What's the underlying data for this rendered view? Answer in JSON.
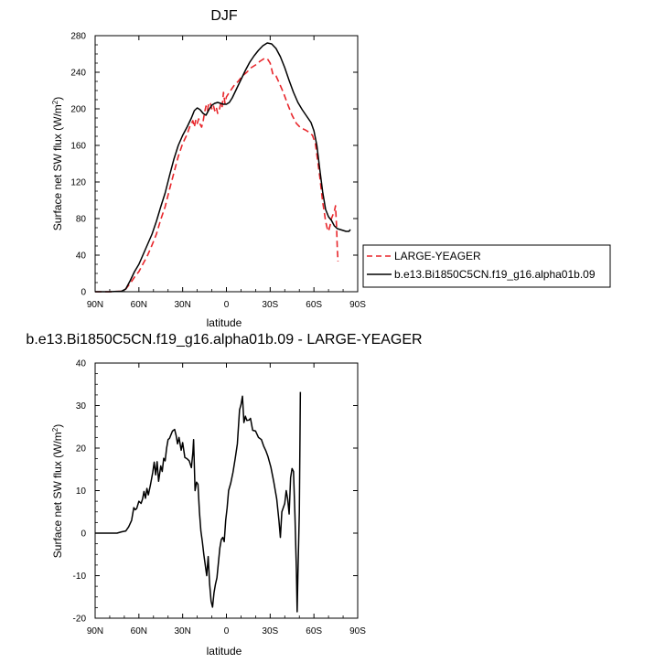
{
  "chart_data": [
    {
      "type": "line",
      "title": "DJF",
      "xlabel": "latitude",
      "ylabel": "Surface net SW flux (W/m",
      "ylabel_sup": "2",
      "ylabel_end": ")",
      "xlim": [
        90,
        -90
      ],
      "ylim": [
        0,
        280
      ],
      "xticks": [
        {
          "value": 90,
          "label": "90N"
        },
        {
          "value": 60,
          "label": "60N"
        },
        {
          "value": 30,
          "label": "30N"
        },
        {
          "value": 0,
          "label": "0"
        },
        {
          "value": -30,
          "label": "30S"
        },
        {
          "value": -60,
          "label": "60S"
        },
        {
          "value": -90,
          "label": "90S"
        }
      ],
      "yticks": [
        0,
        40,
        80,
        120,
        160,
        200,
        240,
        280
      ],
      "legend_position": "right, below plot",
      "series": [
        {
          "name": "LARGE-YEAGER",
          "color": "#e8262b",
          "dash": "dashed",
          "points": [
            [
              90,
              0
            ],
            [
              80,
              0
            ],
            [
              72,
              0.5
            ],
            [
              69,
              3
            ],
            [
              66,
              9
            ],
            [
              63,
              16
            ],
            [
              60,
              22
            ],
            [
              57,
              31
            ],
            [
              54,
              40
            ],
            [
              51,
              51
            ],
            [
              48,
              63
            ],
            [
              45,
              79
            ],
            [
              42,
              93
            ],
            [
              39,
              112
            ],
            [
              36,
              130
            ],
            [
              33,
              148
            ],
            [
              30,
              162
            ],
            [
              27,
              172
            ],
            [
              25,
              181
            ],
            [
              23,
              187
            ],
            [
              22,
              180
            ],
            [
              21,
              188
            ],
            [
              20,
              184
            ],
            [
              19,
              189
            ],
            [
              18,
              183
            ],
            [
              17,
              180
            ],
            [
              16,
              186
            ],
            [
              15,
              196
            ],
            [
              14,
              203
            ],
            [
              13,
              198
            ],
            [
              12,
              207
            ],
            [
              11,
              206
            ],
            [
              10,
              200
            ],
            [
              9,
              204
            ],
            [
              8,
              198
            ],
            [
              7,
              202
            ],
            [
              6,
              195
            ],
            [
              5,
              198
            ],
            [
              4,
              205
            ],
            [
              3,
              201
            ],
            [
              2,
              218
            ],
            [
              1,
              206
            ],
            [
              0,
              213
            ],
            [
              -2,
              218
            ],
            [
              -5,
              225
            ],
            [
              -8,
              230
            ],
            [
              -11,
              236
            ],
            [
              -14,
              240
            ],
            [
              -17,
              245
            ],
            [
              -20,
              248
            ],
            [
              -23,
              252
            ],
            [
              -26,
              255
            ],
            [
              -28,
              255
            ],
            [
              -30,
              250
            ],
            [
              -32,
              237
            ],
            [
              -34,
              236
            ],
            [
              -36,
              229
            ],
            [
              -39,
              218
            ],
            [
              -42,
              205
            ],
            [
              -45,
              193
            ],
            [
              -48,
              184
            ],
            [
              -51,
              179
            ],
            [
              -54,
              177
            ],
            [
              -57,
              174
            ],
            [
              -59,
              171
            ],
            [
              -61,
              162
            ],
            [
              -63,
              138
            ],
            [
              -64,
              126
            ],
            [
              -65,
              112
            ],
            [
              -66,
              98
            ],
            [
              -67,
              88
            ],
            [
              -68,
              77
            ],
            [
              -69,
              70
            ],
            [
              -70,
              66
            ],
            [
              -71,
              72
            ],
            [
              -72,
              80
            ],
            [
              -73,
              84
            ],
            [
              -74,
              88
            ],
            [
              -74.8,
              94
            ],
            [
              -75.5,
              72
            ],
            [
              -76,
              48
            ],
            [
              -76.5,
              33
            ]
          ]
        },
        {
          "name": "b.e13.Bi1850C5CN.f19_g16.alpha01b.09",
          "color": "#000000",
          "dash": "solid",
          "points": [
            [
              90,
              0
            ],
            [
              80,
              0
            ],
            [
              72,
              0.5
            ],
            [
              69,
              3
            ],
            [
              66,
              12
            ],
            [
              63,
              22
            ],
            [
              60,
              30
            ],
            [
              57,
              41
            ],
            [
              54,
              52
            ],
            [
              51,
              63
            ],
            [
              48,
              77
            ],
            [
              45,
              93
            ],
            [
              42,
              108
            ],
            [
              39,
              127
            ],
            [
              36,
              145
            ],
            [
              33,
              160
            ],
            [
              30,
              171
            ],
            [
              27,
              180
            ],
            [
              24,
              190
            ],
            [
              22,
              198
            ],
            [
              20,
              201
            ],
            [
              18,
              199
            ],
            [
              16,
              195
            ],
            [
              14,
              193
            ],
            [
              12,
              199
            ],
            [
              10,
              204
            ],
            [
              8,
              206
            ],
            [
              6,
              207
            ],
            [
              4,
              206
            ],
            [
              2,
              205
            ],
            [
              0,
              205
            ],
            [
              -2,
              207
            ],
            [
              -4,
              212
            ],
            [
              -7,
              222
            ],
            [
              -10,
              232
            ],
            [
              -13,
              242
            ],
            [
              -16,
              251
            ],
            [
              -19,
              258
            ],
            [
              -22,
              264
            ],
            [
              -25,
              269
            ],
            [
              -28,
              272
            ],
            [
              -31,
              271
            ],
            [
              -34,
              266
            ],
            [
              -37,
              257
            ],
            [
              -40,
              245
            ],
            [
              -43,
              231
            ],
            [
              -46,
              218
            ],
            [
              -49,
              207
            ],
            [
              -52,
              199
            ],
            [
              -55,
              192
            ],
            [
              -58,
              185
            ],
            [
              -60,
              176
            ],
            [
              -62,
              160
            ],
            [
              -64,
              134
            ],
            [
              -66,
              109
            ],
            [
              -68,
              90
            ],
            [
              -70,
              82
            ],
            [
              -72,
              78
            ],
            [
              -74,
              72
            ],
            [
              -76,
              69
            ],
            [
              -78,
              68
            ],
            [
              -80,
              67
            ],
            [
              -82,
              66
            ],
            [
              -84,
              66
            ],
            [
              -85,
              68
            ]
          ]
        }
      ]
    },
    {
      "type": "line",
      "title": "b.e13.Bi1850C5CN.f19_g16.alpha01b.09 - LARGE-YEAGER",
      "xlabel": "latitude",
      "ylabel": "Surface net SW flux (W/m",
      "ylabel_sup": "2",
      "ylabel_end": ")",
      "xlim": [
        90,
        -90
      ],
      "ylim": [
        -20,
        40
      ],
      "xticks": [
        {
          "value": 90,
          "label": "90N"
        },
        {
          "value": 60,
          "label": "60N"
        },
        {
          "value": 30,
          "label": "30N"
        },
        {
          "value": 0,
          "label": "0"
        },
        {
          "value": -30,
          "label": "30S"
        },
        {
          "value": -60,
          "label": "60S"
        },
        {
          "value": -90,
          "label": "90S"
        }
      ],
      "yticks": [
        -20,
        -10,
        0,
        10,
        20,
        30,
        40
      ],
      "series": [
        {
          "name": "",
          "color": "#000000",
          "dash": "solid",
          "points": [
            [
              90,
              0
            ],
            [
              80,
              0
            ],
            [
              75,
              0
            ],
            [
              72,
              0.3
            ],
            [
              69,
              0.5
            ],
            [
              67,
              1.5
            ],
            [
              65,
              3
            ],
            [
              63.5,
              6
            ],
            [
              62.5,
              5.5
            ],
            [
              61.5,
              5.8
            ],
            [
              60,
              7.5
            ],
            [
              58.5,
              7
            ],
            [
              57.5,
              8
            ],
            [
              56.5,
              9.8
            ],
            [
              55.5,
              8.2
            ],
            [
              54.5,
              10.5
            ],
            [
              53.5,
              9
            ],
            [
              52,
              11.5
            ],
            [
              50.5,
              14.3
            ],
            [
              49.5,
              16.7
            ],
            [
              48.5,
              13.7
            ],
            [
              47.5,
              16.8
            ],
            [
              46.5,
              12.2
            ],
            [
              45,
              15.8
            ],
            [
              44,
              14.5
            ],
            [
              43,
              17.6
            ],
            [
              42,
              17
            ],
            [
              41,
              20
            ],
            [
              40,
              22
            ],
            [
              39,
              22.3
            ],
            [
              37,
              24
            ],
            [
              35.5,
              24.4
            ],
            [
              34.5,
              23
            ],
            [
              33.5,
              21
            ],
            [
              32.5,
              22.5
            ],
            [
              31,
              19.5
            ],
            [
              30,
              21.3
            ],
            [
              28.5,
              17.8
            ],
            [
              27,
              17.5
            ],
            [
              25.5,
              17
            ],
            [
              24,
              15.4
            ],
            [
              23,
              19
            ],
            [
              22.5,
              22
            ],
            [
              21.5,
              10
            ],
            [
              20.5,
              12
            ],
            [
              19.5,
              11.5
            ],
            [
              18.5,
              5
            ],
            [
              17.5,
              0.5
            ],
            [
              16.5,
              -2
            ],
            [
              15.5,
              -5
            ],
            [
              14.5,
              -7.5
            ],
            [
              13.5,
              -10
            ],
            [
              12.5,
              -5.5
            ],
            [
              11.5,
              -12
            ],
            [
              10.5,
              -16
            ],
            [
              9.5,
              -17.4
            ],
            [
              8.5,
              -14
            ],
            [
              7.5,
              -12
            ],
            [
              6.5,
              -10.5
            ],
            [
              5.5,
              -7
            ],
            [
              4.5,
              -3.5
            ],
            [
              3.5,
              -1.5
            ],
            [
              2.5,
              -1
            ],
            [
              1.5,
              -2
            ],
            [
              0.5,
              3
            ],
            [
              -0.5,
              6
            ],
            [
              -1.5,
              10
            ],
            [
              -3,
              11.8
            ],
            [
              -4.5,
              14.3
            ],
            [
              -6,
              17.5
            ],
            [
              -7.5,
              21
            ],
            [
              -9,
              29
            ],
            [
              -10,
              30.2
            ],
            [
              -11,
              32.2
            ],
            [
              -12,
              26
            ],
            [
              -13,
              27.5
            ],
            [
              -14,
              26.5
            ],
            [
              -15.5,
              26.6
            ],
            [
              -16.5,
              27
            ],
            [
              -18,
              24.2
            ],
            [
              -20,
              24
            ],
            [
              -22,
              22.5
            ],
            [
              -24,
              22
            ],
            [
              -25.5,
              20.5
            ],
            [
              -27,
              19.4
            ],
            [
              -28.5,
              18
            ],
            [
              -30.5,
              15.5
            ],
            [
              -32.5,
              12
            ],
            [
              -34.5,
              8
            ],
            [
              -36,
              3
            ],
            [
              -37,
              -1
            ],
            [
              -38,
              5
            ],
            [
              -39,
              6
            ],
            [
              -40,
              7
            ],
            [
              -41,
              10
            ],
            [
              -42,
              8
            ],
            [
              -43,
              4.5
            ],
            [
              -44,
              13
            ],
            [
              -45,
              15.2
            ],
            [
              -46,
              14.5
            ],
            [
              -47,
              4
            ],
            [
              -48,
              -9
            ],
            [
              -48.5,
              -18.5
            ],
            [
              -49,
              -10
            ],
            [
              -50,
              5
            ],
            [
              -50.7,
              33.2
            ]
          ]
        }
      ]
    }
  ]
}
